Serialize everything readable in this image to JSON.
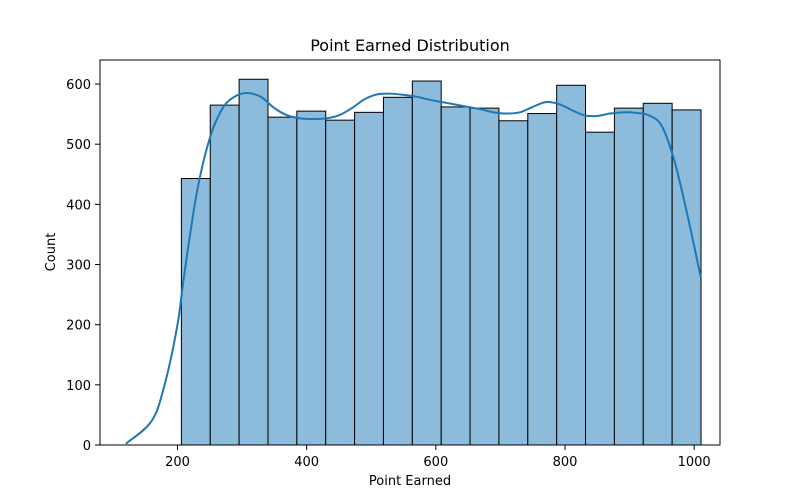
{
  "chart_data": {
    "type": "bar",
    "title": "Point Earned Distribution",
    "xlabel": "Point Earned",
    "ylabel": "Count",
    "xlim": [
      80,
      1040
    ],
    "ylim": [
      0,
      640
    ],
    "xticks": [
      "200",
      "400",
      "600",
      "800",
      "1000"
    ],
    "yticks": [
      "0",
      "100",
      "200",
      "300",
      "400",
      "500",
      "600"
    ],
    "grid": false,
    "legend": "none",
    "bin_edges": [
      206,
      250.7,
      295.4,
      340.1,
      384.8,
      429.5,
      474.2,
      518.9,
      563.6,
      608.3,
      653,
      697.7,
      742.4,
      787.1,
      831.8,
      876.5,
      921.2,
      965.9,
      1010.6
    ],
    "bins": [
      {
        "x0": 206,
        "x1": 250.7,
        "count": 443
      },
      {
        "x0": 250.7,
        "x1": 295.4,
        "count": 565
      },
      {
        "x0": 295.4,
        "x1": 340.1,
        "count": 608
      },
      {
        "x0": 340.1,
        "x1": 384.8,
        "count": 545
      },
      {
        "x0": 384.8,
        "x1": 429.5,
        "count": 555
      },
      {
        "x0": 429.5,
        "x1": 474.2,
        "count": 540
      },
      {
        "x0": 474.2,
        "x1": 518.9,
        "count": 553
      },
      {
        "x0": 518.9,
        "x1": 563.6,
        "count": 578
      },
      {
        "x0": 563.6,
        "x1": 608.3,
        "count": 605
      },
      {
        "x0": 608.3,
        "x1": 653,
        "count": 562
      },
      {
        "x0": 653,
        "x1": 697.7,
        "count": 560
      },
      {
        "x0": 697.7,
        "x1": 742.4,
        "count": 539
      },
      {
        "x0": 742.4,
        "x1": 787.1,
        "count": 551
      },
      {
        "x0": 787.1,
        "x1": 831.8,
        "count": 598
      },
      {
        "x0": 831.8,
        "x1": 876.5,
        "count": 520
      },
      {
        "x0": 876.5,
        "x1": 921.2,
        "count": 560
      },
      {
        "x0": 921.2,
        "x1": 965.9,
        "count": 568
      },
      {
        "x0": 965.9,
        "x1": 1010.6,
        "count": 557
      }
    ],
    "kde": {
      "x": [
        120,
        160,
        180,
        200,
        210,
        230,
        250,
        270,
        290,
        310,
        330,
        350,
        370,
        390,
        410,
        430,
        450,
        470,
        490,
        510,
        530,
        550,
        570,
        590,
        610,
        630,
        650,
        670,
        690,
        710,
        730,
        750,
        770,
        790,
        810,
        830,
        850,
        870,
        890,
        910,
        930,
        950,
        970,
        990,
        1010
      ],
      "y": [
        2,
        40,
        100,
        200,
        280,
        420,
        510,
        560,
        580,
        585,
        578,
        560,
        548,
        543,
        542,
        543,
        548,
        560,
        575,
        583,
        584,
        582,
        579,
        574,
        570,
        566,
        562,
        558,
        553,
        551,
        553,
        562,
        570,
        567,
        557,
        548,
        547,
        551,
        553,
        552,
        548,
        530,
        470,
        380,
        280
      ]
    },
    "colors": {
      "bar_fill": "#8cbbdc",
      "bar_edge": "#000000",
      "kde_line": "#1f77b4"
    }
  }
}
